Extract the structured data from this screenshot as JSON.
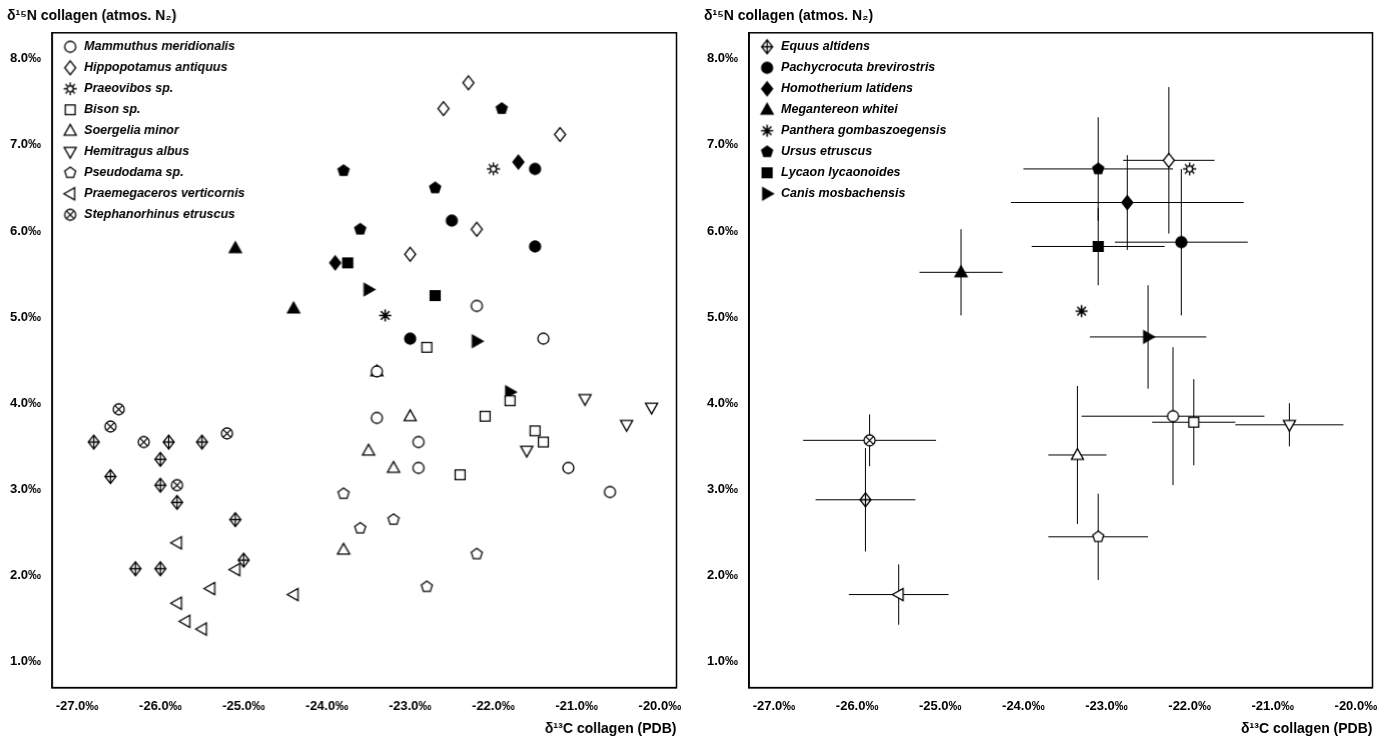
{
  "chart_data": [
    {
      "type": "scatter",
      "x_label": "δ¹³C collagen (PDB)",
      "y_label": "δ¹⁵N collagen (atmos. N₂)",
      "xlim": [
        -27.3,
        -19.8
      ],
      "ylim": [
        0.7,
        8.3
      ],
      "xticks": [
        {
          "value": -27,
          "label": "-27.0‰"
        },
        {
          "value": -26,
          "label": "-26.0‰"
        },
        {
          "value": -25,
          "label": "-25.0‰"
        },
        {
          "value": -24,
          "label": "-24.0‰"
        },
        {
          "value": -23,
          "label": "-23.0‰"
        },
        {
          "value": -22,
          "label": "-22.0‰"
        },
        {
          "value": -21,
          "label": "-21.0‰"
        },
        {
          "value": -20,
          "label": "-20.0‰"
        }
      ],
      "yticks": [
        {
          "value": 1,
          "label": "1.0‰"
        },
        {
          "value": 2,
          "label": "2.0‰"
        },
        {
          "value": 3,
          "label": "3.0‰"
        },
        {
          "value": 4,
          "label": "4.0‰"
        },
        {
          "value": 5,
          "label": "5.0‰"
        },
        {
          "value": 6,
          "label": "6.0‰"
        },
        {
          "value": 7,
          "label": "7.0‰"
        },
        {
          "value": 8,
          "label": "8.0‰"
        }
      ],
      "grid": false,
      "legend": "top-left",
      "legend_series": [
        "Mammuthus meridionalis",
        "Hippopotamus antiquus",
        "Praeovibos sp.",
        "Bison sp.",
        "Soergelia minor",
        "Hemitragus albus",
        "Pseudodama sp.",
        "Praemegaceros verticornis",
        "Stephanorhinus etruscus"
      ],
      "series": [
        {
          "name": "Mammuthus meridionalis",
          "marker": "open-circle",
          "color": "#000000",
          "x": [
            -22.2,
            -21.4,
            -23.4,
            -23.4,
            -22.9,
            -22.9,
            -21.1,
            -20.6
          ],
          "y": [
            5.13,
            4.75,
            4.37,
            3.83,
            3.55,
            3.25,
            3.25,
            2.97
          ]
        },
        {
          "name": "Hippopotamus antiquus",
          "marker": "open-diamond",
          "color": "#000000",
          "x": [
            -22.3,
            -22.6,
            -21.2,
            -22.2,
            -23.0
          ],
          "y": [
            7.72,
            7.42,
            7.12,
            6.02,
            5.73
          ]
        },
        {
          "name": "Praeovibos sp.",
          "marker": "open-sun",
          "color": "#000000",
          "x": [
            -22.0
          ],
          "y": [
            6.72
          ]
        },
        {
          "name": "Bison sp.",
          "marker": "open-square",
          "color": "#000000",
          "x": [
            -22.8,
            -21.8,
            -22.1,
            -21.5,
            -21.4,
            -22.4
          ],
          "y": [
            4.65,
            4.03,
            3.85,
            3.68,
            3.55,
            3.17
          ]
        },
        {
          "name": "Soergelia minor",
          "marker": "open-triangle-up",
          "color": "#000000",
          "x": [
            -23.4,
            -23.0,
            -23.5,
            -23.2,
            -23.8
          ],
          "y": [
            4.37,
            3.85,
            3.45,
            3.25,
            2.3
          ]
        },
        {
          "name": "Hemitragus albus",
          "marker": "open-triangle-down",
          "color": "#000000",
          "x": [
            -20.9,
            -20.1,
            -20.4,
            -21.6
          ],
          "y": [
            4.05,
            3.95,
            3.75,
            3.45
          ]
        },
        {
          "name": "Pseudodama sp.",
          "marker": "open-pentagon",
          "color": "#000000",
          "x": [
            -22.2,
            -22.8,
            -23.2,
            -23.6,
            -23.8
          ],
          "y": [
            2.25,
            1.87,
            2.65,
            2.55,
            2.95
          ]
        },
        {
          "name": "Praemegaceros verticornis",
          "marker": "open-triangle-left",
          "color": "#000000",
          "x": [
            -25.8,
            -25.8,
            -25.7,
            -25.5,
            -25.4,
            -25.1,
            -24.4
          ],
          "y": [
            2.38,
            1.68,
            1.47,
            1.38,
            1.85,
            2.07,
            1.78
          ]
        },
        {
          "name": "Stephanorhinus etruscus",
          "marker": "open-circle-x",
          "color": "#000000",
          "x": [
            -26.5,
            -26.6,
            -26.2,
            -25.2,
            -25.8
          ],
          "y": [
            3.93,
            3.73,
            3.55,
            3.65,
            3.05
          ]
        },
        {
          "name": "Equus altidens",
          "marker": "open-diamond-plus",
          "color": "#000000",
          "x": [
            -26.8,
            -26.6,
            -25.9,
            -26.0,
            -26.0,
            -25.8,
            -25.5,
            -26.3,
            -26.0,
            -25.1,
            -25.0
          ],
          "y": [
            3.55,
            3.15,
            3.55,
            3.35,
            3.05,
            2.85,
            3.55,
            2.08,
            2.08,
            2.65,
            2.18
          ]
        },
        {
          "name": "Pachycrocuta brevirostris",
          "marker": "filled-circle",
          "color": "#000000",
          "x": [
            -21.5,
            -22.5,
            -21.5,
            -23.0
          ],
          "y": [
            6.72,
            6.12,
            5.82,
            4.75
          ]
        },
        {
          "name": "Homotherium latidens",
          "marker": "filled-diamond",
          "color": "#000000",
          "x": [
            -21.7,
            -23.9
          ],
          "y": [
            6.8,
            5.63
          ]
        },
        {
          "name": "Megantereon whitei",
          "marker": "filled-triangle-up",
          "color": "#000000",
          "x": [
            -25.1,
            -24.4
          ],
          "y": [
            5.8,
            5.1
          ]
        },
        {
          "name": "Panthera gombaszoegensis",
          "marker": "filled-asterisk",
          "color": "#000000",
          "x": [
            -23.3
          ],
          "y": [
            5.02
          ]
        },
        {
          "name": "Ursus etruscus",
          "marker": "filled-pentagon",
          "color": "#000000",
          "x": [
            -23.8,
            -21.9,
            -23.6,
            -22.7
          ],
          "y": [
            6.7,
            7.42,
            6.02,
            6.5
          ]
        },
        {
          "name": "Lycaon lycaonoides",
          "marker": "filled-square",
          "color": "#000000",
          "x": [
            -23.75,
            -22.7
          ],
          "y": [
            5.63,
            5.25
          ]
        },
        {
          "name": "Canis mosbachensis",
          "marker": "filled-triangle-right",
          "color": "#000000",
          "x": [
            -23.5,
            -22.2,
            -21.8
          ],
          "y": [
            5.32,
            4.72,
            4.13
          ]
        }
      ]
    },
    {
      "type": "scatter",
      "x_label": "δ¹³C collagen (PDB)",
      "y_label": "δ¹⁵N collagen (atmos. N₂)",
      "xlim": [
        -27.3,
        -19.8
      ],
      "ylim": [
        0.7,
        8.3
      ],
      "xticks": [
        {
          "value": -27,
          "label": "-27.0‰"
        },
        {
          "value": -26,
          "label": "-26.0‰"
        },
        {
          "value": -25,
          "label": "-25.0‰"
        },
        {
          "value": -24,
          "label": "-24.0‰"
        },
        {
          "value": -23,
          "label": "-23.0‰"
        },
        {
          "value": -22,
          "label": "-22.0‰"
        },
        {
          "value": -21,
          "label": "-21.0‰"
        },
        {
          "value": -20,
          "label": "-20.0‰"
        }
      ],
      "yticks": [
        {
          "value": 1,
          "label": "1.0‰"
        },
        {
          "value": 2,
          "label": "2.0‰"
        },
        {
          "value": 3,
          "label": "3.0‰"
        },
        {
          "value": 4,
          "label": "4.0‰"
        },
        {
          "value": 5,
          "label": "5.0‰"
        },
        {
          "value": 6,
          "label": "6.0‰"
        },
        {
          "value": 7,
          "label": "7.0‰"
        },
        {
          "value": 8,
          "label": "8.0‰"
        }
      ],
      "grid": false,
      "legend": "top-left",
      "legend_series": [
        "Equus altidens",
        "Pachycrocuta brevirostris",
        "Homotherium latidens",
        "Megantereon whitei",
        "Panthera gombaszoegensis",
        "Ursus etruscus",
        "Lycaon lycaonoides",
        "Canis mosbachensis"
      ],
      "series": [
        {
          "name": "Mammuthus meridionalis",
          "marker": "open-circle",
          "color": "#000000",
          "x": [
            -22.2
          ],
          "y": [
            3.85
          ],
          "x_error": [
            1.1
          ],
          "y_error": [
            0.8
          ]
        },
        {
          "name": "Hippopotamus antiquus",
          "marker": "open-diamond",
          "color": "#000000",
          "x": [
            -22.25
          ],
          "y": [
            6.82
          ],
          "x_error": [
            0.55
          ],
          "y_error": [
            0.85
          ]
        },
        {
          "name": "Praeovibos sp.",
          "marker": "open-sun",
          "color": "#000000",
          "x": [
            -22.0
          ],
          "y": [
            6.72
          ],
          "x_error": [
            null
          ],
          "y_error": [
            null
          ]
        },
        {
          "name": "Bison sp.",
          "marker": "open-square",
          "color": "#000000",
          "x": [
            -21.95
          ],
          "y": [
            3.78
          ],
          "x_error": [
            0.5
          ],
          "y_error": [
            0.5
          ]
        },
        {
          "name": "Soergelia minor",
          "marker": "open-triangle-up",
          "color": "#000000",
          "x": [
            -23.35
          ],
          "y": [
            3.4
          ],
          "x_error": [
            0.35
          ],
          "y_error": [
            0.8
          ]
        },
        {
          "name": "Hemitragus albus",
          "marker": "open-triangle-down",
          "color": "#000000",
          "x": [
            -20.8
          ],
          "y": [
            3.75
          ],
          "x_error": [
            0.65
          ],
          "y_error": [
            0.25
          ]
        },
        {
          "name": "Pseudodama sp.",
          "marker": "open-pentagon",
          "color": "#000000",
          "x": [
            -23.1
          ],
          "y": [
            2.45
          ],
          "x_error": [
            0.6
          ],
          "y_error": [
            0.5
          ]
        },
        {
          "name": "Praemegaceros verticornis",
          "marker": "open-triangle-left",
          "color": "#000000",
          "x": [
            -25.5
          ],
          "y": [
            1.78
          ],
          "x_error": [
            0.6
          ],
          "y_error": [
            0.35
          ]
        },
        {
          "name": "Stephanorhinus etruscus",
          "marker": "open-circle-x",
          "color": "#000000",
          "x": [
            -25.85
          ],
          "y": [
            3.57
          ],
          "x_error": [
            0.8
          ],
          "y_error": [
            0.3
          ]
        },
        {
          "name": "Equus altidens",
          "marker": "open-diamond-plus",
          "color": "#000000",
          "x": [
            -25.9
          ],
          "y": [
            2.88
          ],
          "x_error": [
            0.6
          ],
          "y_error": [
            0.6
          ]
        },
        {
          "name": "Pachycrocuta brevirostris",
          "marker": "filled-circle",
          "color": "#000000",
          "x": [
            -22.1
          ],
          "y": [
            5.87
          ],
          "x_error": [
            0.8
          ],
          "y_error": [
            0.85
          ]
        },
        {
          "name": "Homotherium latidens",
          "marker": "filled-diamond",
          "color": "#000000",
          "x": [
            -22.75
          ],
          "y": [
            6.33
          ],
          "x_error": [
            1.4
          ],
          "y_error": [
            0.55
          ]
        },
        {
          "name": "Megantereon whitei",
          "marker": "filled-triangle-up",
          "color": "#000000",
          "x": [
            -24.75
          ],
          "y": [
            5.52
          ],
          "x_error": [
            0.5
          ],
          "y_error": [
            0.5
          ]
        },
        {
          "name": "Panthera gombaszoegensis",
          "marker": "filled-asterisk",
          "color": "#000000",
          "x": [
            -23.3
          ],
          "y": [
            5.07
          ],
          "x_error": [
            null
          ],
          "y_error": [
            null
          ]
        },
        {
          "name": "Ursus etruscus",
          "marker": "filled-pentagon",
          "color": "#000000",
          "x": [
            -23.1
          ],
          "y": [
            6.72
          ],
          "x_error": [
            0.9
          ],
          "y_error": [
            0.6
          ]
        },
        {
          "name": "Lycaon lycaonoides",
          "marker": "filled-square",
          "color": "#000000",
          "x": [
            -23.1
          ],
          "y": [
            5.82
          ],
          "x_error": [
            0.8
          ],
          "y_error": [
            0.45
          ]
        },
        {
          "name": "Canis mosbachensis",
          "marker": "filled-triangle-right",
          "color": "#000000",
          "x": [
            -22.5
          ],
          "y": [
            4.77
          ],
          "x_error": [
            0.7
          ],
          "y_error": [
            0.6
          ]
        }
      ]
    }
  ]
}
